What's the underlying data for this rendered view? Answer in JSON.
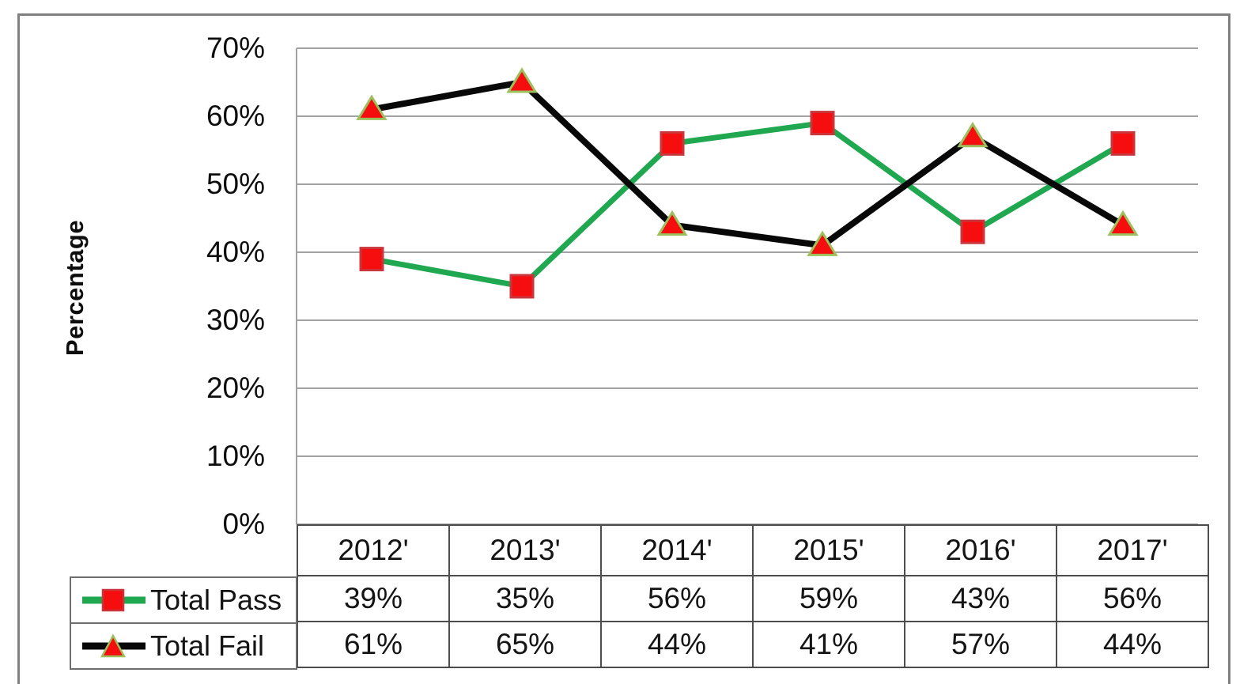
{
  "chart_data": {
    "type": "line",
    "title": "",
    "xlabel": "",
    "ylabel": "Percentage",
    "categories": [
      "2012'",
      "2013'",
      "2014'",
      "2015'",
      "2016'",
      "2017'"
    ],
    "series": [
      {
        "name": "Total Pass",
        "values": [
          39,
          35,
          56,
          59,
          43,
          56
        ],
        "line_color": "#1FA84F",
        "line_width": 7,
        "marker": "square",
        "marker_fill": "#F60D0D",
        "marker_stroke": "#C9363C"
      },
      {
        "name": "Total Fail",
        "values": [
          61,
          65,
          44,
          41,
          57,
          44
        ],
        "line_color": "#080808",
        "line_width": 8,
        "marker": "triangle",
        "marker_fill": "#F60D0D",
        "marker_stroke": "#9DC05E"
      }
    ],
    "ylim": [
      0,
      70
    ],
    "ytick_step": 10,
    "ytick_labels": [
      "0%",
      "10%",
      "20%",
      "30%",
      "40%",
      "50%",
      "60%",
      "70%"
    ],
    "grid": true,
    "gridline_color": "#A3A3A3",
    "axis_line_color": "#A3A3A3",
    "legend_position": "table-left"
  },
  "table": {
    "years": [
      "2012'",
      "2013'",
      "2014'",
      "2015'",
      "2016'",
      "2017'"
    ],
    "rows": [
      {
        "label": "Total Pass",
        "values": [
          "39%",
          "35%",
          "56%",
          "59%",
          "43%",
          "56%"
        ]
      },
      {
        "label": "Total Fail",
        "values": [
          "61%",
          "65%",
          "44%",
          "41%",
          "57%",
          "44%"
        ]
      }
    ]
  },
  "frame_color": "#808080"
}
